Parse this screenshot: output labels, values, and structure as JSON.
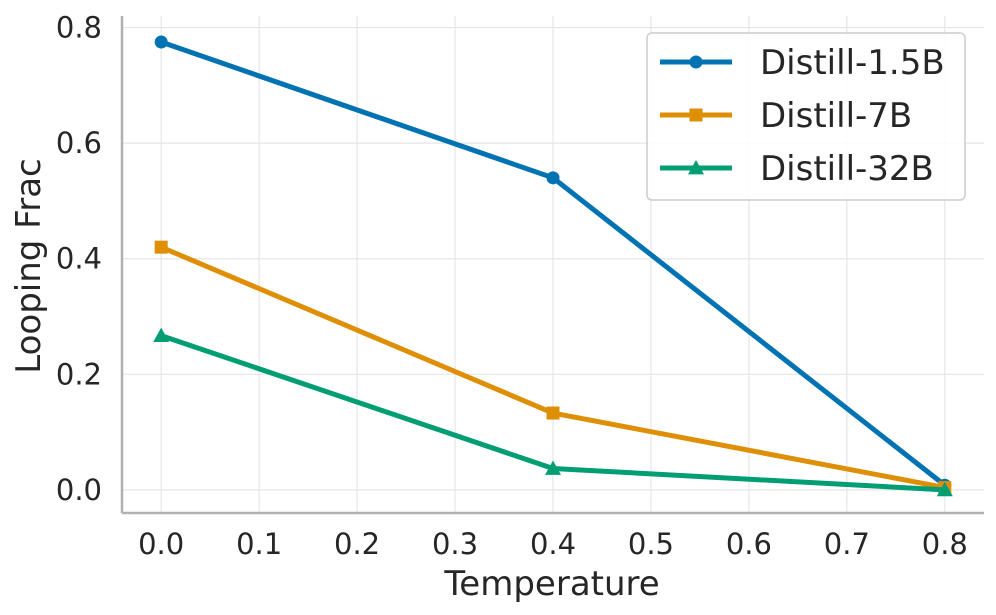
{
  "chart_data": {
    "type": "line",
    "title": "",
    "xlabel": "Temperature",
    "ylabel": "Looping Frac",
    "xlim": [
      -0.04,
      0.84
    ],
    "ylim": [
      -0.04,
      0.82
    ],
    "x_ticks": [
      "0.0",
      "0.1",
      "0.2",
      "0.3",
      "0.4",
      "0.5",
      "0.6",
      "0.7",
      "0.8"
    ],
    "y_ticks": [
      "0.0",
      "0.2",
      "0.4",
      "0.6",
      "0.8"
    ],
    "grid": true,
    "legend_position": "top-right",
    "series": [
      {
        "name": "Distill-1.5B",
        "color": "#0173b2",
        "marker": "circle",
        "x": [
          0.0,
          0.4,
          0.8
        ],
        "y": [
          0.775,
          0.54,
          0.008
        ]
      },
      {
        "name": "Distill-7B",
        "color": "#de8f05",
        "marker": "square",
        "x": [
          0.0,
          0.4,
          0.8
        ],
        "y": [
          0.42,
          0.133,
          0.004
        ]
      },
      {
        "name": "Distill-32B",
        "color": "#029e73",
        "marker": "triangle",
        "x": [
          0.0,
          0.4,
          0.8
        ],
        "y": [
          0.267,
          0.037,
          0.0
        ]
      }
    ]
  }
}
